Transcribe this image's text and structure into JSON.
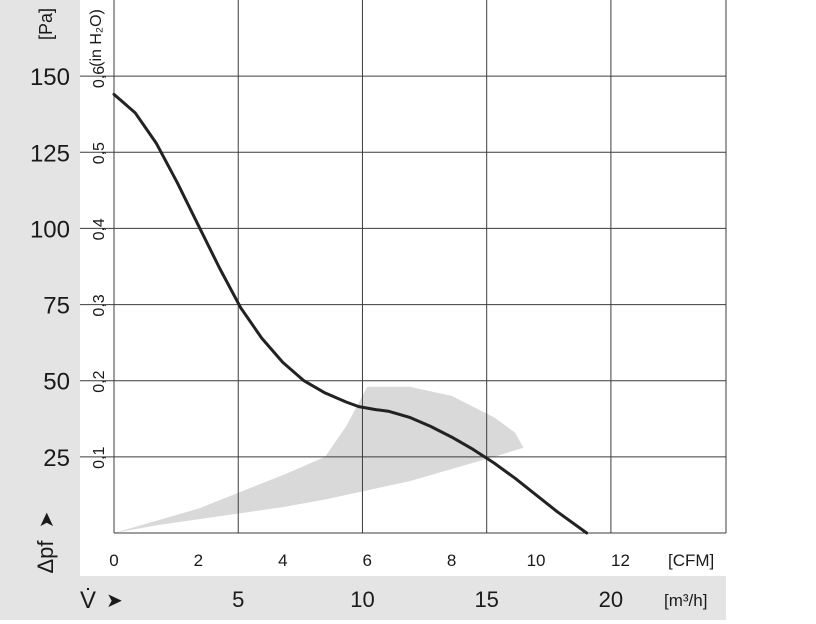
{
  "chart_data": {
    "type": "line",
    "title": "",
    "grid": true,
    "x_axis_primary": {
      "unit": "[CFM]",
      "ticks": [
        "0",
        "2",
        "4",
        "6",
        "8",
        "10",
        "12"
      ],
      "range": [
        0,
        14.5
      ]
    },
    "x_axis_secondary": {
      "label": "V̇",
      "unit": "[m³/h]",
      "ticks": [
        "5",
        "10",
        "15",
        "20"
      ]
    },
    "y_axis_primary": {
      "label": "Δpf",
      "unit": "[Pa]",
      "ticks": [
        "25",
        "50",
        "75",
        "100",
        "125",
        "150"
      ],
      "range": [
        0,
        175
      ]
    },
    "y_axis_secondary": {
      "unit": "(in H₂O)",
      "ticks": [
        "0,1",
        "0,2",
        "0,3",
        "0,4",
        "0,5",
        "0,6"
      ]
    },
    "series": [
      {
        "color": "#222222",
        "x_cfm": [
          0,
          0.5,
          1.0,
          1.5,
          2.0,
          2.5,
          3.0,
          3.5,
          4.0,
          4.5,
          5.0,
          5.5,
          5.8,
          6.2,
          6.5,
          7.0,
          7.5,
          8.0,
          8.5,
          9.0,
          9.5,
          10.0,
          10.5,
          11.2
        ],
        "y_pa": [
          144,
          138,
          128,
          115,
          101,
          87,
          74,
          64,
          56,
          50,
          46,
          43,
          41.5,
          40.5,
          40,
          38,
          35,
          31.5,
          27.5,
          23,
          18,
          12.5,
          7,
          0
        ]
      }
    ],
    "shaded_region": {
      "color": "#d9d9d9",
      "upper_x_cfm": [
        0,
        2,
        4,
        5,
        5.5,
        6,
        7,
        8,
        9,
        9.5,
        9.7
      ],
      "upper_y_pa": [
        0,
        8,
        19,
        25,
        35,
        48,
        48,
        45,
        38,
        33,
        28
      ],
      "lower_x_cfm": [
        9.7,
        9,
        8,
        7,
        6,
        5,
        4,
        3,
        2,
        1,
        0
      ],
      "lower_y_pa": [
        28,
        25,
        21,
        17,
        14,
        11,
        8.5,
        6.5,
        4.5,
        2.5,
        0
      ]
    },
    "colors": {
      "side_panel": "#e4e4e4",
      "grid": "#3c3c3c",
      "curve": "#222222",
      "text": "#1a1a1a"
    }
  }
}
